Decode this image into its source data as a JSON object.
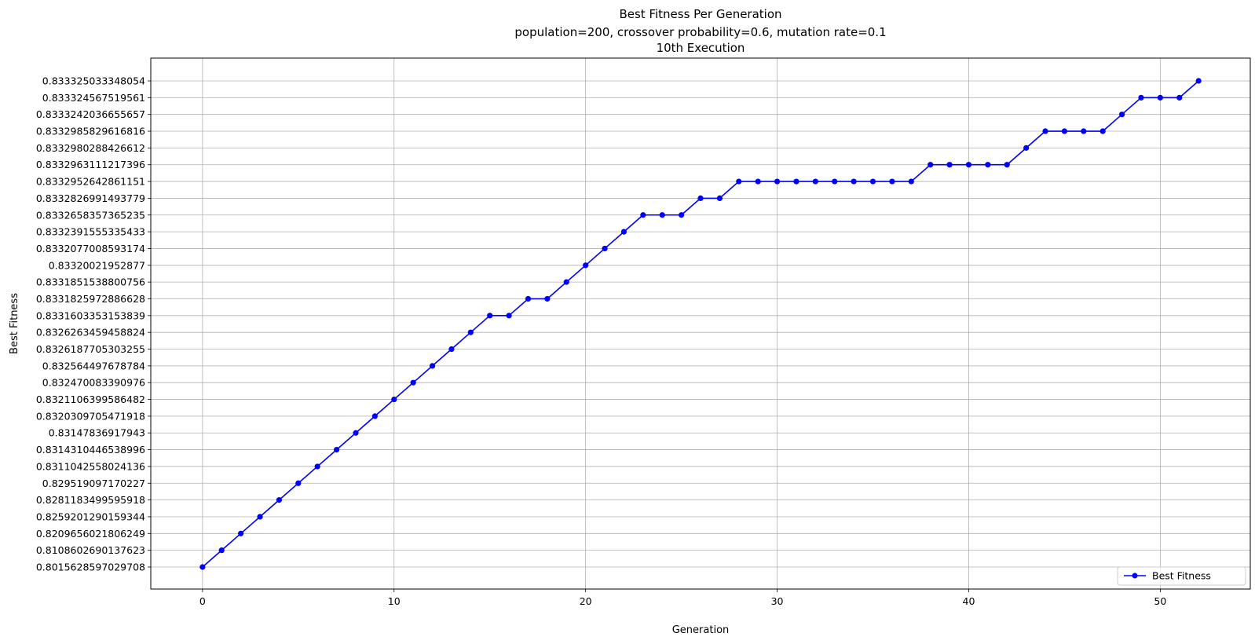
{
  "chart_data": {
    "type": "line",
    "title_lines": [
      "Best Fitness Per Generation",
      "population=200, crossover probability=0.6, mutation rate=0.1",
      "10th Execution"
    ],
    "xlabel": "Generation",
    "ylabel": "Best Fitness",
    "xlim": [
      -2.7,
      54.7
    ],
    "x_ticks": [
      0,
      10,
      20,
      30,
      40,
      50
    ],
    "y_categories": [
      "0.8015628597029708",
      "0.8108602690137623",
      "0.8209656021806249",
      "0.8259201290159344",
      "0.8281183499595918",
      "0.829519097170227",
      "0.8311042558024136",
      "0.8314310446538996",
      "0.83147836917943",
      "0.8320309705471918",
      "0.8321106399586482",
      "0.832470083390976",
      "0.832564497678784",
      "0.8326187705303255",
      "0.8326263459458824",
      "0.8331603353153839",
      "0.8331825972886628",
      "0.8331851538800756",
      "0.83320021952877",
      "0.8332077008593174",
      "0.8332391555335433",
      "0.8332658357365235",
      "0.8332826991493779",
      "0.83329526428611​51",
      "0.8332963111217396",
      "0.8332980288426612",
      "0.8332985829616816",
      "0.8333242036655657",
      "0.833324567519561",
      "0.833325033348054"
    ],
    "series": [
      {
        "name": "Best Fitness",
        "color": "#0000ff",
        "x": [
          0,
          1,
          2,
          3,
          4,
          5,
          6,
          7,
          8,
          9,
          10,
          11,
          12,
          13,
          14,
          15,
          16,
          17,
          18,
          19,
          20,
          21,
          22,
          23,
          24,
          25,
          26,
          27,
          28,
          29,
          30,
          31,
          32,
          33,
          34,
          35,
          36,
          37,
          38,
          39,
          40,
          41,
          42,
          43,
          44,
          45,
          46,
          47,
          48,
          49,
          50,
          51,
          52
        ],
        "y_index": [
          0,
          1,
          2,
          3,
          4,
          5,
          6,
          7,
          8,
          9,
          10,
          11,
          12,
          13,
          14,
          15,
          15,
          16,
          16,
          17,
          18,
          19,
          20,
          21,
          21,
          21,
          22,
          22,
          23,
          23,
          23,
          23,
          23,
          23,
          23,
          23,
          23,
          23,
          24,
          24,
          24,
          24,
          24,
          25,
          26,
          26,
          26,
          26,
          27,
          28,
          28,
          28,
          29
        ]
      }
    ],
    "legend": {
      "position": "bottom-right",
      "label": "Best Fitness"
    },
    "grid": true
  }
}
